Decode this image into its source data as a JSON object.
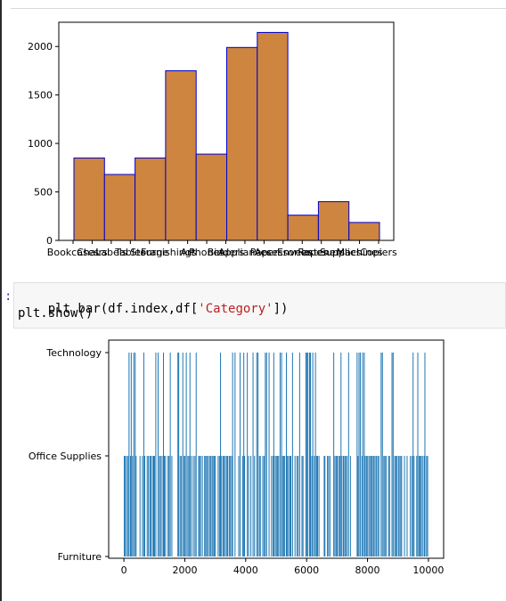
{
  "code": {
    "prompt": ":",
    "line1": {
      "pre": "plt.bar(df.index,df[",
      "str": "'Category'",
      "post": "])"
    },
    "line2": "plt.show()"
  },
  "chart_data": [
    {
      "type": "bar",
      "categories": [
        "Bookcases",
        "Chairs",
        "Labels",
        "Tables",
        "Storage",
        "Furnishings",
        "Art",
        "Phones",
        "Binders",
        "Appliances",
        "Paper",
        "Accessories",
        "Envelopes",
        "Fasteners",
        "Supplies",
        "Machines",
        "Copiers"
      ],
      "visible_bins": [
        {
          "value": 850
        },
        {
          "value": 680
        },
        {
          "value": 850
        },
        {
          "value": 1750
        },
        {
          "value": 890
        },
        {
          "value": 1990
        },
        {
          "value": 2145
        },
        {
          "value": 260
        },
        {
          "value": 400
        },
        {
          "value": 185
        }
      ],
      "ylim": [
        0,
        2250
      ],
      "yticks": [
        0,
        500,
        1000,
        1500,
        2000
      ],
      "colors": {
        "fill": "#cd853f",
        "edge": "#0000cd"
      }
    },
    {
      "type": "bar",
      "xlim": [
        -500,
        10500
      ],
      "xticks": [
        0,
        2000,
        4000,
        6000,
        8000,
        10000
      ],
      "y_categories": [
        "Furniture",
        "Office Supplies",
        "Technology"
      ],
      "colors": {
        "bar": "#1f77b4"
      }
    }
  ]
}
